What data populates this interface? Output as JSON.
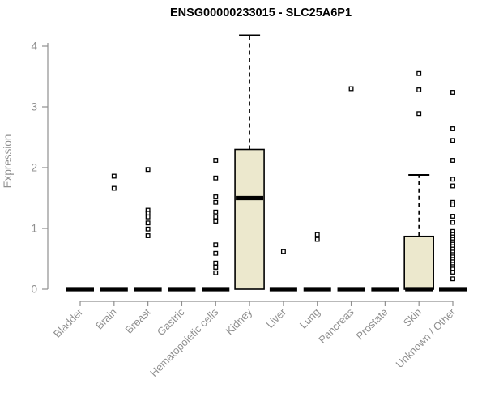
{
  "chart_data": {
    "type": "boxplot",
    "title": "ENSG00000233015 - SLC25A6P1",
    "ylabel": "Expression",
    "xlabel": "",
    "ylim": [
      0,
      4.2
    ],
    "yticks": [
      0,
      1,
      2,
      3,
      4
    ],
    "grid": false,
    "legend": false,
    "categories": [
      "Bladder",
      "Brain",
      "Breast",
      "Gastric",
      "Hematopoietic cells",
      "Kidney",
      "Liver",
      "Lung",
      "Pancreas",
      "Prostate",
      "Skin",
      "Unknown / Other"
    ],
    "series": [
      {
        "category": "Bladder",
        "q1": 0,
        "median": 0,
        "q3": 0,
        "whisker_low": 0,
        "whisker_high": 0,
        "outliers": []
      },
      {
        "category": "Brain",
        "q1": 0,
        "median": 0,
        "q3": 0,
        "whisker_low": 0,
        "whisker_high": 0,
        "outliers": [
          1.86,
          1.66
        ]
      },
      {
        "category": "Breast",
        "q1": 0,
        "median": 0,
        "q3": 0,
        "whisker_low": 0,
        "whisker_high": 0,
        "outliers": [
          1.97,
          1.3,
          1.25,
          1.19,
          1.09,
          0.99,
          0.88
        ]
      },
      {
        "category": "Gastric",
        "q1": 0,
        "median": 0,
        "q3": 0,
        "whisker_low": 0,
        "whisker_high": 0,
        "outliers": []
      },
      {
        "category": "Hematopoietic cells",
        "q1": 0,
        "median": 0,
        "q3": 0,
        "whisker_low": 0,
        "whisker_high": 0,
        "outliers": [
          2.12,
          1.83,
          1.52,
          1.43,
          1.27,
          1.19,
          1.12,
          0.73,
          0.59,
          0.43,
          0.36,
          0.27
        ]
      },
      {
        "category": "Kidney",
        "q1": 0,
        "median": 1.5,
        "q3": 2.3,
        "whisker_low": 0,
        "whisker_high": 4.18,
        "outliers": []
      },
      {
        "category": "Liver",
        "q1": 0,
        "median": 0,
        "q3": 0,
        "whisker_low": 0,
        "whisker_high": 0,
        "outliers": [
          0.62
        ]
      },
      {
        "category": "Lung",
        "q1": 0,
        "median": 0,
        "q3": 0,
        "whisker_low": 0,
        "whisker_high": 0,
        "outliers": [
          0.9,
          0.82
        ]
      },
      {
        "category": "Pancreas",
        "q1": 0,
        "median": 0,
        "q3": 0,
        "whisker_low": 0,
        "whisker_high": 0,
        "outliers": [
          3.3
        ]
      },
      {
        "category": "Prostate",
        "q1": 0,
        "median": 0,
        "q3": 0,
        "whisker_low": 0,
        "whisker_high": 0,
        "outliers": []
      },
      {
        "category": "Skin",
        "q1": 0,
        "median": 0,
        "q3": 0.87,
        "whisker_low": 0,
        "whisker_high": 1.88,
        "outliers": [
          3.55,
          3.28,
          2.89
        ]
      },
      {
        "category": "Unknown / Other",
        "q1": 0,
        "median": 0,
        "q3": 0,
        "whisker_low": 0,
        "whisker_high": 0,
        "outliers": [
          3.24,
          2.64,
          2.45,
          2.12,
          1.81,
          1.7,
          1.43,
          1.39,
          1.2,
          1.1,
          0.95,
          0.9,
          0.86,
          0.82,
          0.78,
          0.74,
          0.7,
          0.66,
          0.61,
          0.57,
          0.53,
          0.49,
          0.45,
          0.41,
          0.37,
          0.33,
          0.28,
          0.17
        ]
      }
    ],
    "colors": {
      "box_fill": "#ece8cd",
      "box_border": "#000000",
      "median": "#000000",
      "whisker": "#000000",
      "outlier_stroke": "#000000",
      "outlier_fill": "#ffffff",
      "axis": "#8f8f8f",
      "tick_label": "#8f8f8f",
      "title": "#000000",
      "background": "#ffffff"
    }
  }
}
